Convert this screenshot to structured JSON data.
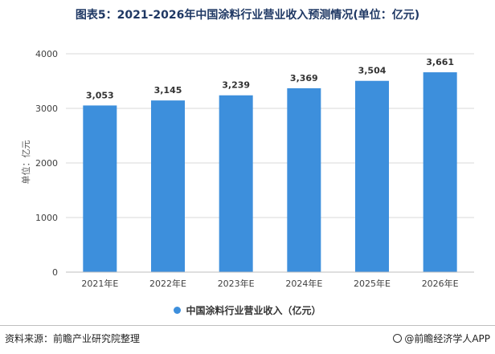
{
  "chart_data": {
    "type": "bar",
    "title": "图表5：2021-2026年中国涂料行业营业收入预测情况(单位：亿元)",
    "ylabel": "单位：亿元",
    "xlabel": "",
    "categories": [
      "2021年E",
      "2022年E",
      "2023年E",
      "2024年E",
      "2025年E",
      "2026年E"
    ],
    "series": [
      {
        "name": "中国涂料行业营业收入（亿元）",
        "values": [
          3053,
          3145,
          3239,
          3369,
          3504,
          3661
        ]
      }
    ],
    "data_labels": [
      "3,053",
      "3,145",
      "3,239",
      "3,369",
      "3,504",
      "3,661"
    ],
    "ylim": [
      0,
      4000
    ],
    "yticks": [
      "0",
      "1000",
      "2000",
      "3000",
      "4000"
    ],
    "ytick_values": [
      0,
      1000,
      2000,
      3000,
      4000
    ],
    "grid": true,
    "legend_position": "bottom",
    "bar_color": "#3d8fdc"
  },
  "footer": {
    "source": "资料来源：前瞻产业研究院整理",
    "brand": "@前瞻经济学人APP"
  }
}
